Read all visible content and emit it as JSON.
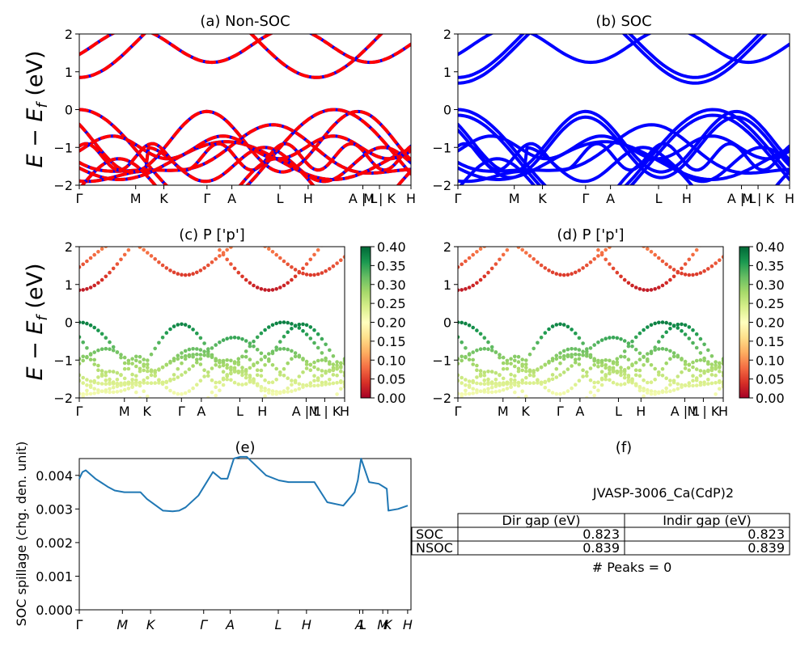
{
  "figure": {
    "ylabel_band": "E − E_f (eV)",
    "ylabel_band_main": "E − E",
    "ylabel_band_sub": "f",
    "ylabel_band_unit": " (eV)"
  },
  "chart_data": [
    {
      "id": "a",
      "type": "line",
      "title": "(a) Non-SOC",
      "ylabel": "E − E_f (eV)",
      "ylim": [
        -2,
        2
      ],
      "yticks": [
        "2",
        "1",
        "0",
        "−1",
        "−2"
      ],
      "xtick_labels": [
        "Γ",
        "M",
        "K",
        "Γ",
        "A",
        "L",
        "H",
        "A | L",
        "M | K",
        "H"
      ],
      "grid": false,
      "series_colors": [
        "#ff0000",
        "#0000ff"
      ],
      "note": "dashed red over blue bands"
    },
    {
      "id": "b",
      "type": "line",
      "title": "(b) SOC",
      "ylim": [
        -2,
        2
      ],
      "yticks": [
        "2",
        "1",
        "0",
        "−1",
        "−2"
      ],
      "xtick_labels": [
        "Γ",
        "M",
        "K",
        "Γ",
        "A",
        "L",
        "H",
        "A | L",
        "M | K",
        "H"
      ],
      "series_colors": [
        "#0000ff"
      ]
    },
    {
      "id": "c",
      "type": "scatter",
      "title": "(c)  P ['p']",
      "ylabel": "E − E_f (eV)",
      "ylim": [
        -2,
        2
      ],
      "yticks": [
        "2",
        "1",
        "0",
        "−1",
        "−2"
      ],
      "xtick_labels": [
        "Γ",
        "M",
        "K",
        "Γ",
        "A",
        "L",
        "H",
        "A | L",
        "M | K",
        "H"
      ],
      "colorbar": {
        "range": [
          0.0,
          0.4
        ],
        "ticks": [
          "0.40",
          "0.35",
          "0.30",
          "0.25",
          "0.20",
          "0.15",
          "0.10",
          "0.05",
          "0.00"
        ],
        "colormap": "RdYlGn"
      }
    },
    {
      "id": "d",
      "type": "scatter",
      "title": "(d) P ['p']",
      "ylim": [
        -2,
        2
      ],
      "yticks": [
        "2",
        "1",
        "0",
        "−1",
        "−2"
      ],
      "xtick_labels": [
        "Γ",
        "M",
        "K",
        "Γ",
        "A",
        "L",
        "H",
        "A | L",
        "M | K",
        "H"
      ],
      "colorbar": {
        "range": [
          0.0,
          0.4
        ],
        "ticks": [
          "0.40",
          "0.35",
          "0.30",
          "0.25",
          "0.20",
          "0.15",
          "0.10",
          "0.05",
          "0.00"
        ],
        "colormap": "RdYlGn"
      }
    },
    {
      "id": "e",
      "type": "line",
      "title": "(e)",
      "ylabel": "SOC spillage (chg. den. unit)",
      "ylim": [
        0,
        0.0045
      ],
      "yticks": [
        "0.004",
        "0.003",
        "0.002",
        "0.001",
        "0.000"
      ],
      "xtick_labels": [
        "Γ",
        "M",
        "K",
        "Γ",
        "A",
        "L",
        "H",
        "A",
        "L",
        "M",
        "K",
        "H"
      ],
      "series_colors": [
        "#1f77b4"
      ],
      "x": [
        0,
        0.1,
        0.2,
        0.5,
        0.9,
        1.1,
        1.4,
        1.9,
        2.1,
        2.6,
        2.9,
        3.1,
        3.3,
        3.7,
        4.15,
        4.4,
        4.6,
        4.8,
        5.0,
        5.2,
        5.8,
        6.2,
        6.5,
        7.0,
        7.3,
        7.7,
        8.2,
        8.55,
        8.65,
        8.75,
        9.0,
        9.3,
        9.55,
        9.6,
        9.9,
        10.2
      ],
      "values": [
        0.0039,
        0.0041,
        0.00415,
        0.0039,
        0.00365,
        0.00355,
        0.0035,
        0.0035,
        0.0033,
        0.00295,
        0.00293,
        0.00295,
        0.00305,
        0.0034,
        0.0041,
        0.0039,
        0.0039,
        0.0045,
        0.00455,
        0.00455,
        0.004,
        0.00385,
        0.0038,
        0.0038,
        0.0038,
        0.0032,
        0.0031,
        0.0035,
        0.00385,
        0.0045,
        0.0038,
        0.00375,
        0.0036,
        0.00295,
        0.003,
        0.0031
      ]
    },
    {
      "id": "f",
      "type": "table",
      "title": "(f)",
      "subtitle": "JVASP-3006_Ca(CdP)2",
      "columns": [
        "",
        "Dir gap (eV)",
        "Indir gap (eV)"
      ],
      "rows": [
        [
          "SOC",
          "0.823",
          "0.823"
        ],
        [
          "NSOC",
          "0.839",
          "0.839"
        ]
      ],
      "footer": "# Peaks = 0"
    }
  ]
}
